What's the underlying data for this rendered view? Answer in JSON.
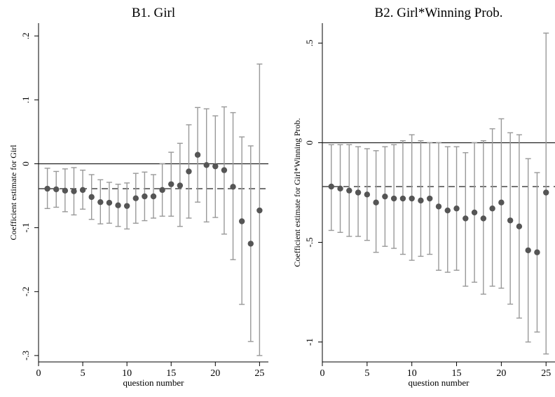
{
  "chart_data": [
    {
      "type": "scatter",
      "title": "B1. Girl",
      "xlabel": "question number",
      "ylabel": "Coefficient estimate for Girl",
      "xlim": [
        0,
        26
      ],
      "ylim": [
        -0.31,
        0.22
      ],
      "xticks": [
        0,
        5,
        10,
        15,
        20,
        25
      ],
      "yticks": [
        -0.3,
        -0.2,
        -0.1,
        0,
        0.1,
        0.2
      ],
      "ytick_labels": [
        "-.3",
        "-.2",
        "-.1",
        "0",
        ".1",
        ".2"
      ],
      "reference_line": 0,
      "mean_line": -0.039,
      "grid": false,
      "x": [
        1,
        2,
        3,
        4,
        5,
        6,
        7,
        8,
        9,
        10,
        11,
        12,
        13,
        14,
        15,
        16,
        17,
        18,
        19,
        20,
        21,
        22,
        23,
        24,
        25
      ],
      "estimate": [
        -0.039,
        -0.04,
        -0.042,
        -0.043,
        -0.041,
        -0.052,
        -0.06,
        -0.061,
        -0.065,
        -0.066,
        -0.054,
        -0.051,
        -0.051,
        -0.041,
        -0.032,
        -0.034,
        -0.012,
        0.014,
        -0.002,
        -0.004,
        -0.01,
        -0.036,
        -0.09,
        -0.125,
        -0.073
      ],
      "ci_low": [
        -0.07,
        -0.068,
        -0.075,
        -0.08,
        -0.071,
        -0.087,
        -0.094,
        -0.093,
        -0.098,
        -0.102,
        -0.093,
        -0.089,
        -0.085,
        -0.082,
        -0.082,
        -0.098,
        -0.085,
        -0.06,
        -0.091,
        -0.084,
        -0.11,
        -0.15,
        -0.22,
        -0.278,
        -0.3
      ],
      "ci_high": [
        -0.007,
        -0.012,
        -0.008,
        -0.006,
        -0.01,
        -0.017,
        -0.025,
        -0.029,
        -0.032,
        -0.03,
        -0.015,
        -0.013,
        -0.017,
        0.0,
        0.018,
        0.032,
        0.061,
        0.088,
        0.086,
        0.075,
        0.089,
        0.08,
        0.042,
        0.028,
        0.156
      ]
    },
    {
      "type": "scatter",
      "title": "B2. Girl*Winning Prob.",
      "xlabel": "question number",
      "ylabel": "Coefficient estimate for Girl*Winning Prob.",
      "xlim": [
        0,
        26
      ],
      "ylim": [
        -1.1,
        0.6
      ],
      "xticks": [
        0,
        5,
        10,
        15,
        20,
        25
      ],
      "yticks": [
        -1,
        -0.5,
        0,
        0.5
      ],
      "ytick_labels": [
        "-1",
        "-.5",
        "0",
        ".5"
      ],
      "reference_line": 0,
      "mean_line": -0.22,
      "grid": false,
      "x": [
        1,
        2,
        3,
        4,
        5,
        6,
        7,
        8,
        9,
        10,
        11,
        12,
        13,
        14,
        15,
        16,
        17,
        18,
        19,
        20,
        21,
        22,
        23,
        24,
        25
      ],
      "estimate": [
        -0.22,
        -0.23,
        -0.24,
        -0.25,
        -0.26,
        -0.3,
        -0.27,
        -0.28,
        -0.28,
        -0.28,
        -0.29,
        -0.28,
        -0.32,
        -0.34,
        -0.33,
        -0.38,
        -0.35,
        -0.38,
        -0.33,
        -0.3,
        -0.39,
        -0.42,
        -0.54,
        -0.55,
        -0.25
      ],
      "ci_low": [
        -0.44,
        -0.45,
        -0.47,
        -0.47,
        -0.49,
        -0.55,
        -0.52,
        -0.53,
        -0.56,
        -0.59,
        -0.57,
        -0.56,
        -0.64,
        -0.65,
        -0.64,
        -0.72,
        -0.7,
        -0.76,
        -0.72,
        -0.73,
        -0.81,
        -0.88,
        -1.0,
        -0.95,
        -1.06
      ],
      "ci_high": [
        -0.01,
        -0.01,
        -0.01,
        -0.02,
        -0.03,
        -0.04,
        -0.02,
        -0.01,
        0.01,
        0.04,
        0.01,
        0.0,
        0.0,
        -0.02,
        -0.02,
        -0.05,
        0.0,
        0.01,
        0.07,
        0.12,
        0.05,
        0.04,
        -0.08,
        -0.15,
        0.55
      ]
    }
  ]
}
